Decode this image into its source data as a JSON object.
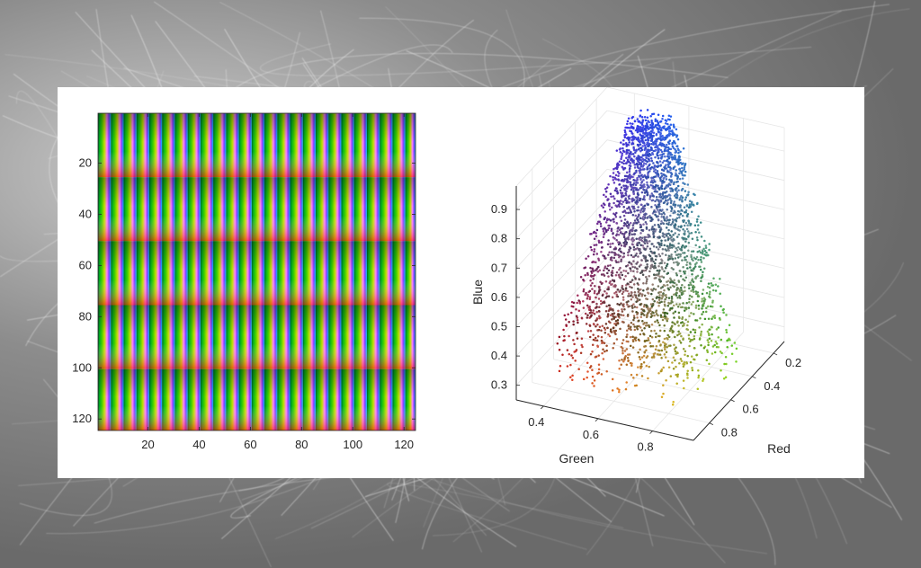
{
  "colors": {
    "axis": "#262626",
    "panel": "#ffffff",
    "grid": "#e6e6e6"
  },
  "chart_data": [
    {
      "type": "heatmap",
      "title": "",
      "xlabel": "",
      "ylabel": "",
      "xlim": [
        0.5,
        124.5
      ],
      "ylim": [
        0.5,
        124.5
      ],
      "y_reversed": true,
      "x_ticks": [
        20,
        40,
        60,
        80,
        100,
        120
      ],
      "y_ticks": [
        20,
        40,
        60,
        80,
        100,
        120
      ],
      "description": "",
      "tile": {
        "block_rows": 25,
        "stripe_cols": 5,
        "hue_stops": [
          "#00ff80",
          "#00a000",
          "#ff3000",
          "#ffd000",
          "#ffff00",
          "#ff00ff",
          "#0000ff",
          "#00ffff"
        ]
      },
      "grid": false
    },
    {
      "type": "scatter",
      "title": "",
      "xlabel": "Green",
      "ylabel": "Red",
      "zlabel": "Blue",
      "x_ticks": [
        0.4,
        0.6,
        0.8
      ],
      "y_ticks": [
        0.2,
        0.4,
        0.6,
        0.8
      ],
      "z_ticks": [
        0.3,
        0.4,
        0.5,
        0.6,
        0.7,
        0.8,
        0.9
      ],
      "xlim": [
        0.3,
        0.95
      ],
      "ylim": [
        0.1,
        0.95
      ],
      "zlim": [
        0.25,
        0.98
      ],
      "grid": true,
      "point_count": 3000,
      "marker_color": "rgb(Red, Green, Blue)"
    }
  ]
}
